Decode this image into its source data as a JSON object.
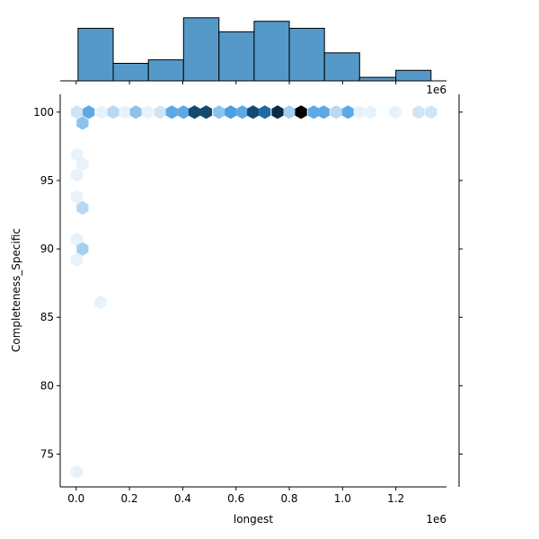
{
  "chart_data": {
    "type": "hexbin",
    "xlabel": "longest",
    "ylabel": "Completeness_Specific",
    "x_offset_text": "1e6",
    "top_offset_text": "1e6",
    "xlim": [
      -0.06,
      1.39
    ],
    "ylim": [
      72.6,
      101.3
    ],
    "xticks": [
      "0.0",
      "0.2",
      "0.4",
      "0.6",
      "0.8",
      "1.0",
      "1.2"
    ],
    "xtick_values": [
      0,
      0.2,
      0.4,
      0.6,
      0.8,
      1.0,
      1.2
    ],
    "yticks": [
      "75",
      "80",
      "85",
      "90",
      "95",
      "100"
    ],
    "ytick_values": [
      75,
      80,
      85,
      90,
      95,
      100
    ],
    "colormap": "Blues",
    "hexbins": [
      {
        "x": 0.003,
        "y": 100,
        "count": 2
      },
      {
        "x": 0.047,
        "y": 100,
        "count": 6
      },
      {
        "x": 0.095,
        "y": 100,
        "count": 1
      },
      {
        "x": 0.139,
        "y": 100,
        "count": 3
      },
      {
        "x": 0.183,
        "y": 100,
        "count": 1
      },
      {
        "x": 0.224,
        "y": 100,
        "count": 5
      },
      {
        "x": 0.268,
        "y": 100,
        "count": 1
      },
      {
        "x": 0.315,
        "y": 100,
        "count": 2
      },
      {
        "x": 0.359,
        "y": 100,
        "count": 6
      },
      {
        "x": 0.403,
        "y": 100,
        "count": 6
      },
      {
        "x": 0.444,
        "y": 100,
        "count": 11
      },
      {
        "x": 0.488,
        "y": 100,
        "count": 11
      },
      {
        "x": 0.536,
        "y": 100,
        "count": 5
      },
      {
        "x": 0.58,
        "y": 100,
        "count": 7
      },
      {
        "x": 0.624,
        "y": 100,
        "count": 6
      },
      {
        "x": 0.664,
        "y": 100,
        "count": 11
      },
      {
        "x": 0.708,
        "y": 100,
        "count": 9
      },
      {
        "x": 0.756,
        "y": 100,
        "count": 12
      },
      {
        "x": 0.8,
        "y": 100,
        "count": 4
      },
      {
        "x": 0.844,
        "y": 100,
        "count": 13
      },
      {
        "x": 0.892,
        "y": 100,
        "count": 6
      },
      {
        "x": 0.929,
        "y": 100,
        "count": 6
      },
      {
        "x": 0.976,
        "y": 100,
        "count": 3
      },
      {
        "x": 1.02,
        "y": 100,
        "count": 6
      },
      {
        "x": 1.064,
        "y": 100,
        "count": 1
      },
      {
        "x": 1.105,
        "y": 100,
        "count": 1
      },
      {
        "x": 1.197,
        "y": 100,
        "count": 1
      },
      {
        "x": 1.285,
        "y": 100,
        "count": 2
      },
      {
        "x": 1.332,
        "y": 100,
        "count": 2
      },
      {
        "x": 0.024,
        "y": 99.2,
        "count": 5
      },
      {
        "x": 0.003,
        "y": 96.9,
        "count": 1
      },
      {
        "x": 0.024,
        "y": 96.2,
        "count": 1
      },
      {
        "x": 0.003,
        "y": 95.4,
        "count": 1
      },
      {
        "x": 0.003,
        "y": 93.8,
        "count": 1
      },
      {
        "x": 0.024,
        "y": 93.0,
        "count": 3
      },
      {
        "x": 0.003,
        "y": 90.7,
        "count": 1
      },
      {
        "x": 0.024,
        "y": 90.0,
        "count": 4
      },
      {
        "x": 0.003,
        "y": 89.2,
        "count": 1
      },
      {
        "x": 0.092,
        "y": 86.1,
        "count": 1
      },
      {
        "x": 0.003,
        "y": 73.7,
        "count": 1
      }
    ],
    "top_histogram": {
      "bin_edges": [
        0.007,
        0.139,
        0.271,
        0.403,
        0.536,
        0.668,
        0.8,
        0.932,
        1.064,
        1.2,
        1.332
      ],
      "counts": [
        15,
        5,
        6,
        18,
        14,
        17,
        15,
        8,
        1,
        3
      ],
      "color": "#5499c7"
    }
  }
}
